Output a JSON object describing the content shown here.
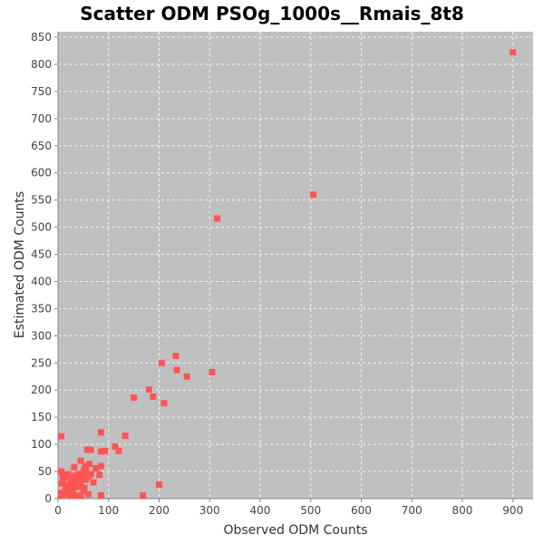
{
  "chart_data": {
    "type": "scatter",
    "title": "Scatter ODM PSOg_1000s__Rmais_8t8",
    "xlabel": "Observed ODM Counts",
    "ylabel": "Estimated ODM Counts",
    "xlim": [
      0,
      940
    ],
    "ylim": [
      0,
      860
    ],
    "xticks": [
      0,
      100,
      200,
      300,
      400,
      500,
      600,
      700,
      800,
      900
    ],
    "yticks": [
      0,
      50,
      100,
      150,
      200,
      250,
      300,
      350,
      400,
      450,
      500,
      550,
      600,
      650,
      700,
      750,
      800,
      850
    ],
    "grid": true,
    "plot_background": "#c0c0c0",
    "marker_color": "#ff5555",
    "marker": "square",
    "points": [
      [
        900,
        822
      ],
      [
        505,
        560
      ],
      [
        315,
        516
      ],
      [
        233,
        263
      ],
      [
        205,
        250
      ],
      [
        235,
        237
      ],
      [
        255,
        225
      ],
      [
        305,
        233
      ],
      [
        180,
        201
      ],
      [
        188,
        188
      ],
      [
        150,
        186
      ],
      [
        210,
        176
      ],
      [
        85,
        122
      ],
      [
        133,
        116
      ],
      [
        2,
        115
      ],
      [
        113,
        96
      ],
      [
        120,
        88
      ],
      [
        93,
        88
      ],
      [
        85,
        87
      ],
      [
        58,
        90
      ],
      [
        65,
        90
      ],
      [
        45,
        70
      ],
      [
        62,
        64
      ],
      [
        85,
        60
      ],
      [
        75,
        56
      ],
      [
        32,
        58
      ],
      [
        52,
        55
      ],
      [
        82,
        44
      ],
      [
        40,
        45
      ],
      [
        20,
        45
      ],
      [
        48,
        40
      ],
      [
        60,
        42
      ],
      [
        55,
        50
      ],
      [
        10,
        35
      ],
      [
        25,
        30
      ],
      [
        35,
        25
      ],
      [
        45,
        30
      ],
      [
        55,
        35
      ],
      [
        15,
        20
      ],
      [
        30,
        15
      ],
      [
        50,
        15
      ],
      [
        5,
        10
      ],
      [
        20,
        8
      ],
      [
        40,
        5
      ],
      [
        60,
        8
      ],
      [
        200,
        26
      ],
      [
        5,
        50
      ],
      [
        10,
        45
      ],
      [
        15,
        40
      ],
      [
        28,
        38
      ],
      [
        38,
        35
      ],
      [
        8,
        28
      ],
      [
        18,
        25
      ],
      [
        42,
        22
      ],
      [
        52,
        20
      ],
      [
        12,
        12
      ],
      [
        25,
        5
      ],
      [
        35,
        2
      ],
      [
        45,
        0
      ],
      [
        85,
        0
      ],
      [
        168,
        0
      ],
      [
        3,
        3
      ],
      [
        8,
        0
      ],
      [
        55,
        60
      ],
      [
        65,
        45
      ],
      [
        70,
        30
      ],
      [
        50,
        48
      ],
      [
        22,
        18
      ],
      [
        33,
        42
      ]
    ]
  }
}
